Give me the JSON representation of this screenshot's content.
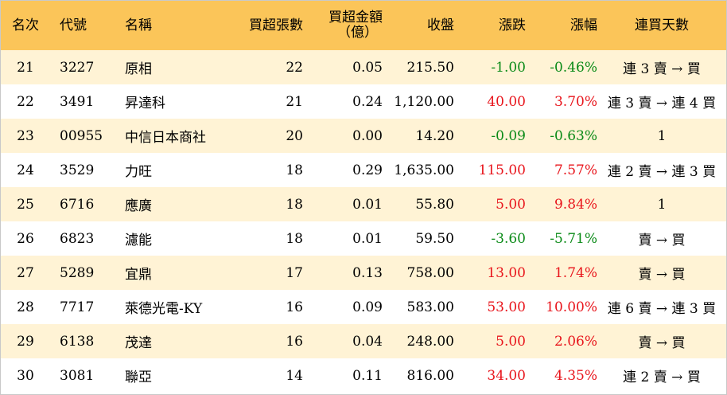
{
  "headers": {
    "rank": "名次",
    "code": "代號",
    "name": "名稱",
    "volume": "買超張數",
    "amount_line1": "買超金額",
    "amount_line2": "（億）",
    "close": "收盤",
    "change": "漲跌",
    "pct": "漲幅",
    "days": "連買天數"
  },
  "colors": {
    "header_bg": "#fbc559",
    "odd_row_bg": "#fff3d5",
    "up": "#e8141b",
    "down": "#0a8a17"
  },
  "rows": [
    {
      "rank": "21",
      "code": "3227",
      "name": "原相",
      "volume": "22",
      "amount": "0.05",
      "close": "215.50",
      "change": "-1.00",
      "pct": "-0.46%",
      "dir": "down",
      "days": "連 3 賣 → 買"
    },
    {
      "rank": "22",
      "code": "3491",
      "name": "昇達科",
      "volume": "21",
      "amount": "0.24",
      "close": "1,120.00",
      "change": "40.00",
      "pct": "3.70%",
      "dir": "up",
      "days": "連 3 賣 → 連 4 買"
    },
    {
      "rank": "23",
      "code": "00955",
      "name": "中信日本商社",
      "volume": "20",
      "amount": "0.00",
      "close": "14.20",
      "change": "-0.09",
      "pct": "-0.63%",
      "dir": "down",
      "days": "1"
    },
    {
      "rank": "24",
      "code": "3529",
      "name": "力旺",
      "volume": "18",
      "amount": "0.29",
      "close": "1,635.00",
      "change": "115.00",
      "pct": "7.57%",
      "dir": "up",
      "days": "連 2 賣 → 連 3 買"
    },
    {
      "rank": "25",
      "code": "6716",
      "name": "應廣",
      "volume": "18",
      "amount": "0.01",
      "close": "55.80",
      "change": "5.00",
      "pct": "9.84%",
      "dir": "up",
      "days": "1"
    },
    {
      "rank": "26",
      "code": "6823",
      "name": "濾能",
      "volume": "18",
      "amount": "0.01",
      "close": "59.50",
      "change": "-3.60",
      "pct": "-5.71%",
      "dir": "down",
      "days": "賣 → 買"
    },
    {
      "rank": "27",
      "code": "5289",
      "name": "宜鼎",
      "volume": "17",
      "amount": "0.13",
      "close": "758.00",
      "change": "13.00",
      "pct": "1.74%",
      "dir": "up",
      "days": "賣 → 買"
    },
    {
      "rank": "28",
      "code": "7717",
      "name": "萊德光電-KY",
      "volume": "16",
      "amount": "0.09",
      "close": "583.00",
      "change": "53.00",
      "pct": "10.00%",
      "dir": "up",
      "days": "連 6 賣 → 連 3 買"
    },
    {
      "rank": "29",
      "code": "6138",
      "name": "茂達",
      "volume": "16",
      "amount": "0.04",
      "close": "248.00",
      "change": "5.00",
      "pct": "2.06%",
      "dir": "up",
      "days": "賣 → 買"
    },
    {
      "rank": "30",
      "code": "3081",
      "name": "聯亞",
      "volume": "14",
      "amount": "0.11",
      "close": "816.00",
      "change": "34.00",
      "pct": "4.35%",
      "dir": "up",
      "days": "連 2 賣 → 買"
    }
  ]
}
